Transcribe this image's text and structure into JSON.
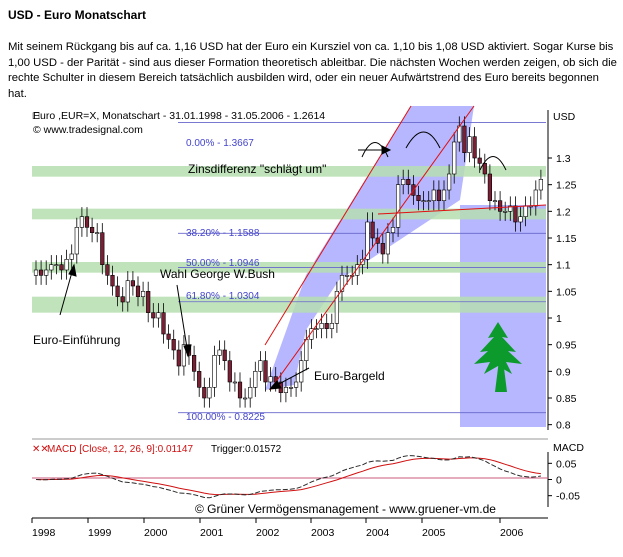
{
  "title": "USD - Euro Monatschart",
  "description": "Mit seinem Rückgang bis auf ca. 1,16 USD hat der Euro ein Kursziel von ca. 1,10 bis 1,08 USD aktiviert. Sogar Kurse bis 1,00 USD - der Parität - sind aus dieser Formation theoretisch ableitbar. Die nächsten Wochen werden zeigen, ob sich die rechte Schulter in diesem Bereich tatsächlich ausbilden wird, oder ein neuer Aufwärtstrend des Euro bereits begonnen hat.",
  "chart_data": [
    {
      "type": "candlestick",
      "header": "Euro ,EUR=X, Monatschart - 31.01.1998 - 31.05.2006 - 1.2614",
      "source": "© www.tradesignal.com",
      "unit_label": "USD",
      "x_ticks": [
        "1998",
        "1999",
        "2000",
        "2001",
        "2002",
        "2003",
        "2004",
        "2005",
        "2006"
      ],
      "y_ticks": [
        0.8,
        0.85,
        0.9,
        0.95,
        1,
        1.05,
        1.1,
        1.15,
        1.2,
        1.25,
        1.3
      ],
      "ylim": [
        0.79,
        1.39
      ],
      "fib_levels": [
        {
          "label": "0.00% - 1.3667",
          "value": 1.3667
        },
        {
          "label": "38.20% - 1.1588",
          "value": 1.1588
        },
        {
          "label": "50.00% - 1.0946",
          "value": 1.0946
        },
        {
          "label": "61.80% - 1.0304",
          "value": 1.0304
        },
        {
          "label": "100.00% - 0.8225",
          "value": 0.8225
        }
      ],
      "bands": [
        [
          1.265,
          1.285
        ],
        [
          1.185,
          1.205
        ],
        [
          1.085,
          1.105
        ],
        [
          1.01,
          1.04
        ]
      ],
      "annotations": [
        {
          "text": "Zinsdifferenz \"schlägt um\""
        },
        {
          "text": "Wahl George W.Bush"
        },
        {
          "text": "Euro-Einführung"
        },
        {
          "text": "Euro-Bargeld"
        }
      ],
      "closes": [
        1.09,
        1.08,
        1.09,
        1.1,
        1.1,
        1.09,
        1.11,
        1.12,
        1.17,
        1.19,
        1.17,
        1.16,
        1.16,
        1.1,
        1.08,
        1.06,
        1.04,
        1.03,
        1.07,
        1.06,
        1.04,
        1.05,
        1.01,
        1.0,
        1.01,
        0.97,
        0.96,
        0.94,
        0.91,
        0.95,
        0.93,
        0.9,
        0.87,
        0.85,
        0.87,
        0.93,
        0.94,
        0.92,
        0.88,
        0.88,
        0.85,
        0.85,
        0.87,
        0.9,
        0.92,
        0.88,
        0.89,
        0.88,
        0.86,
        0.87,
        0.87,
        0.88,
        0.92,
        0.96,
        0.98,
        0.98,
        0.99,
        0.98,
        0.99,
        1.05,
        1.08,
        1.08,
        1.08,
        1.1,
        1.11,
        1.18,
        1.15,
        1.14,
        1.12,
        1.16,
        1.17,
        1.25,
        1.26,
        1.25,
        1.23,
        1.22,
        1.22,
        1.22,
        1.24,
        1.22,
        1.24,
        1.27,
        1.33,
        1.36,
        1.31,
        1.34,
        1.3,
        1.29,
        1.27,
        1.22,
        1.22,
        1.2,
        1.2,
        1.21,
        1.18,
        1.19,
        1.21,
        1.21,
        1.24,
        1.26
      ]
    },
    {
      "type": "line",
      "title": "MACD [Close, 12, 26, 9]:0.01147",
      "trigger_label": "Trigger:0.01572",
      "unit_label": "MACD",
      "y_ticks": [
        0.05,
        0,
        -0.05
      ],
      "ylim": [
        -0.085,
        0.085
      ]
    }
  ],
  "copyright": "© Grüner Vermögensmanagement - www.gruener-vm.de",
  "colors": {
    "up": "#ffffff",
    "down": "#7a2035",
    "channel": "#7b7bff",
    "band": "#b6deb0",
    "macd": "#2a2a2a",
    "trigger": "#d01010",
    "tree": "#0b9a2b"
  }
}
